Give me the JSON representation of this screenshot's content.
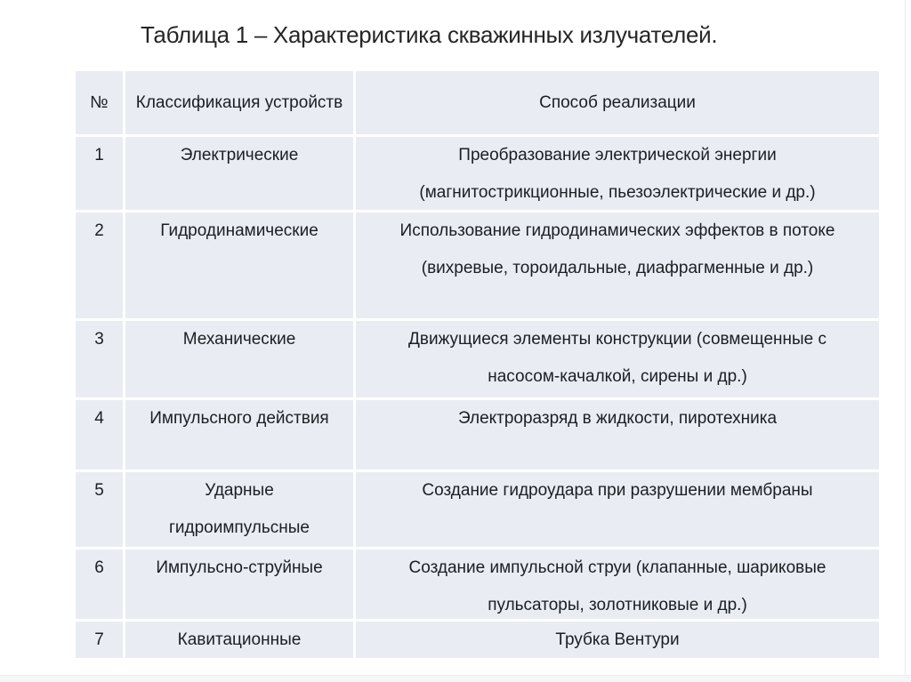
{
  "slide": {
    "title": "Таблица 1 – Характеристика скважинных излучателей."
  },
  "table": {
    "headers": [
      "№",
      "Классификация устройств",
      "Способ реализации"
    ],
    "rows": [
      {
        "num": "1",
        "classification_lines": [
          "Электрические"
        ],
        "method_lines": [
          "Преобразование электрической энергии",
          "(магнитострикционные, пьезоэлектрические и др.)"
        ]
      },
      {
        "num": "2",
        "classification_lines": [
          "Гидродинамические"
        ],
        "method_lines": [
          "Использование гидродинамических эффектов в потоке",
          "(вихревые, тороидальные, диафрагменные и др.)"
        ]
      },
      {
        "num": "3",
        "classification_lines": [
          "Механические"
        ],
        "method_lines": [
          "Движущиеся элементы конструкции (совмещенные с",
          "насосом-качалкой, сирены и др.)"
        ]
      },
      {
        "num": "4",
        "classification_lines": [
          "Импульсного действия"
        ],
        "method_lines": [
          "Электроразряд в жидкости, пиротехника"
        ]
      },
      {
        "num": "5",
        "classification_lines": [
          "Ударные",
          "гидроимпульсные"
        ],
        "method_lines": [
          "Создание гидроудара при разрушении мембраны"
        ]
      },
      {
        "num": "6",
        "classification_lines": [
          "Импульсно-струйные"
        ],
        "method_lines": [
          "Создание импульсной струи (клапанные, шариковые",
          "пульсаторы, золотниковые и др.)"
        ]
      },
      {
        "num": "7",
        "classification_lines": [
          "Кавитационные"
        ],
        "method_lines": [
          "Трубка Вентури"
        ]
      }
    ],
    "colors": {
      "cell_background": "#e9edf3",
      "text": "#1b1e23",
      "gap": "#ffffff"
    }
  }
}
